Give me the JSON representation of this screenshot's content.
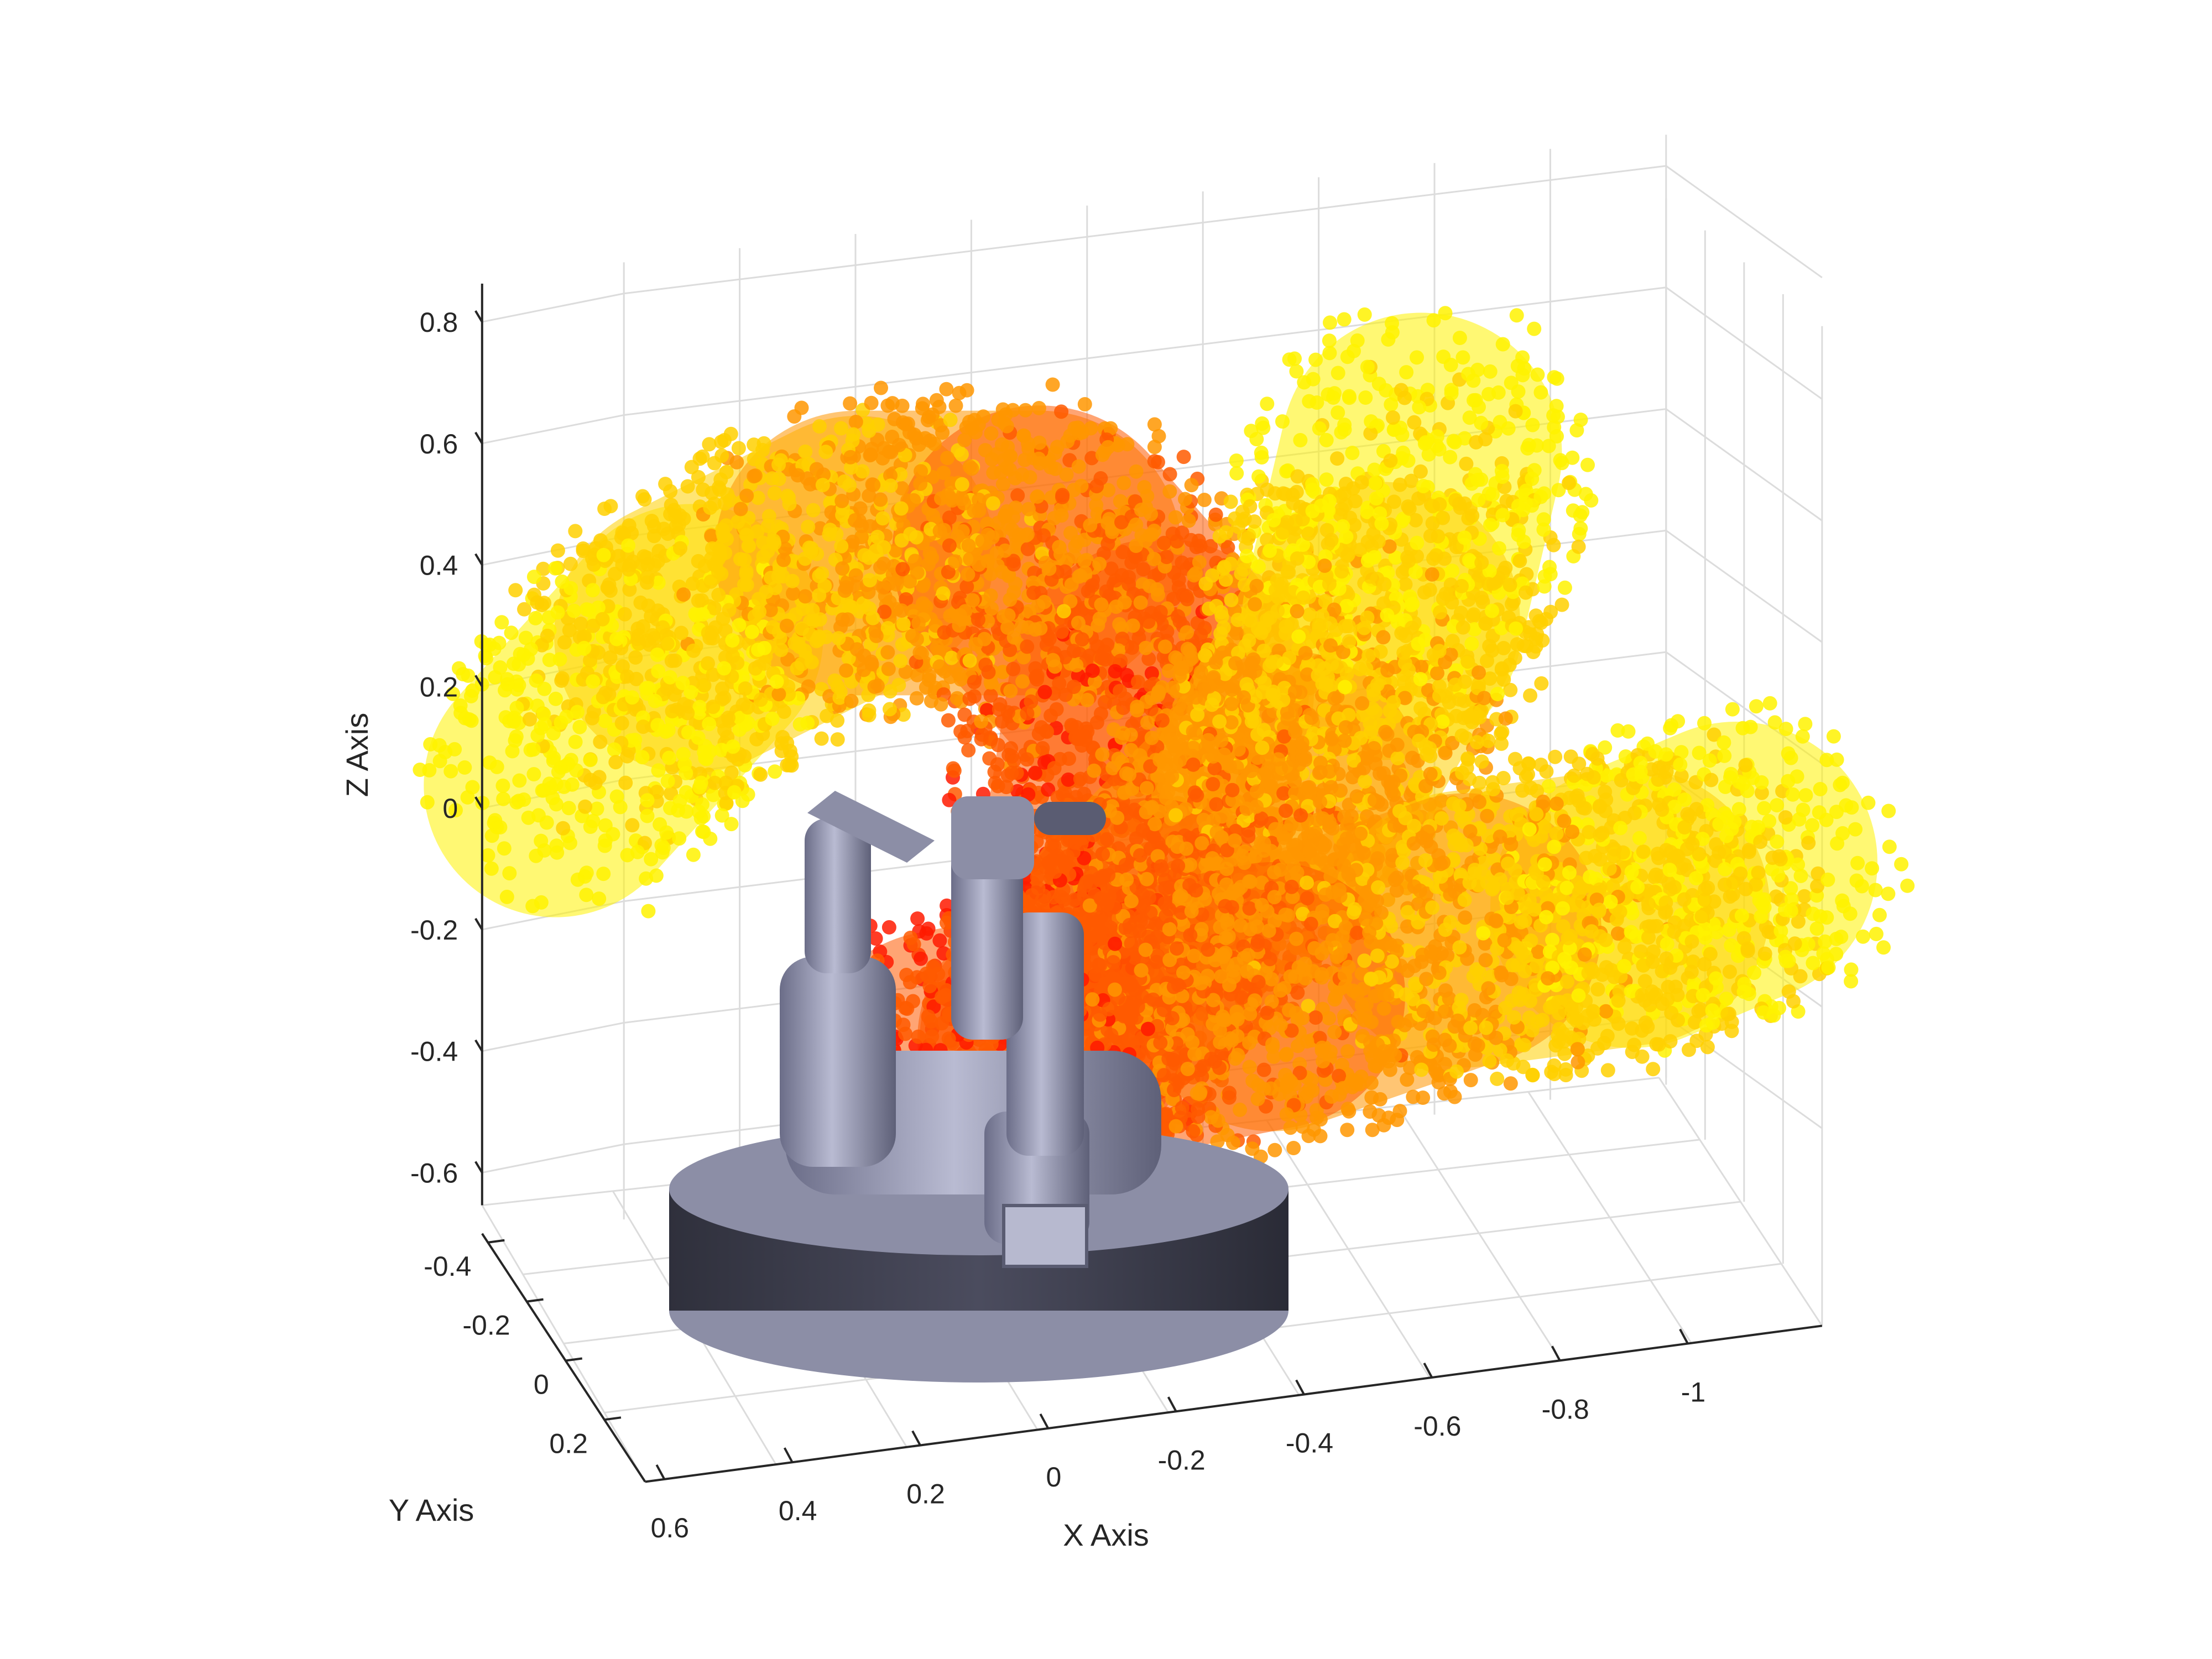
{
  "chart_data": {
    "type": "scatter",
    "title": "",
    "xlabel": "X Axis",
    "ylabel": "Y Axis",
    "zlabel": "Z Axis",
    "x_ticks": [
      "0.6",
      "0.4",
      "0.2",
      "0",
      "-0.2",
      "-0.4",
      "-0.6",
      "-0.8",
      "-1"
    ],
    "y_ticks": [
      "-0.4",
      "-0.2",
      "0",
      "0.2"
    ],
    "z_ticks": [
      "0.8",
      "0.6",
      "0.4",
      "0.2",
      "0",
      "-0.2",
      "-0.4",
      "-0.6"
    ],
    "xlim": [
      -1.1,
      0.65
    ],
    "ylim": [
      -0.45,
      0.3
    ],
    "zlim": [
      -0.65,
      0.85
    ],
    "grid": true,
    "colormap": [
      "#ff1a00",
      "#ff5a00",
      "#ff9600",
      "#ffd000",
      "#fff200"
    ],
    "series": [
      {
        "shape": "swept-cylinder",
        "points": [
          [
            0.35,
            0.05,
            0.4
          ],
          [
            0.25,
            0.0,
            0.45
          ],
          [
            0.1,
            0.0,
            0.3
          ],
          [
            0.0,
            0.0,
            0.0
          ]
        ]
      },
      {
        "shape": "swept-cylinder",
        "points": [
          [
            -0.5,
            0.0,
            0.6
          ],
          [
            -0.45,
            0.0,
            0.4
          ],
          [
            -0.3,
            0.0,
            0.15
          ],
          [
            0.0,
            0.0,
            -0.2
          ]
        ]
      },
      {
        "shape": "swept-cylinder",
        "points": [
          [
            -1.05,
            0.0,
            -0.05
          ],
          [
            -0.8,
            0.0,
            -0.2
          ],
          [
            -0.5,
            0.0,
            -0.3
          ],
          [
            0.0,
            0.0,
            -0.35
          ]
        ]
      }
    ],
    "robot": {
      "model": "robot-arm",
      "base_color": "#3e3f4f",
      "link_color": "#8c8ea6"
    }
  }
}
